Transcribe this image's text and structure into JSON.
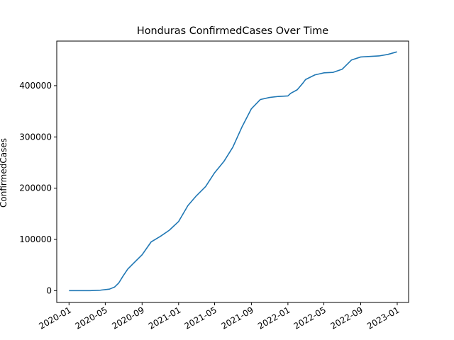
{
  "chart_data": {
    "type": "line",
    "title": "Honduras  ConfirmedCases Over Time",
    "xlabel": "",
    "ylabel": "ConfirmedCases",
    "grid": false,
    "legend": "none",
    "xlim": [
      "2019-11-21",
      "2023-02-08"
    ],
    "ylim": [
      -23000,
      487000
    ],
    "x_ticks": [
      "2020-01",
      "2020-05",
      "2020-09",
      "2021-01",
      "2021-05",
      "2021-09",
      "2022-01",
      "2022-05",
      "2022-09",
      "2023-01"
    ],
    "y_ticks": [
      0,
      100000,
      200000,
      300000,
      400000
    ],
    "y_tick_labels": [
      "0",
      "100000",
      "200000",
      "300000",
      "400000"
    ],
    "series": [
      {
        "color": "#1f77b4",
        "x": [
          "2020-01-01",
          "2020-03-10",
          "2020-04-15",
          "2020-05-15",
          "2020-06-01",
          "2020-06-15",
          "2020-07-01",
          "2020-07-15",
          "2020-08-01",
          "2020-09-01",
          "2020-10-01",
          "2020-11-01",
          "2020-12-01",
          "2021-01-01",
          "2021-02-01",
          "2021-03-01",
          "2021-04-01",
          "2021-05-01",
          "2021-06-01",
          "2021-07-01",
          "2021-08-01",
          "2021-09-01",
          "2021-10-01",
          "2021-11-01",
          "2021-12-01",
          "2022-01-01",
          "2022-01-10",
          "2022-02-01",
          "2022-02-20",
          "2022-03-01",
          "2022-04-01",
          "2022-05-01",
          "2022-06-01",
          "2022-07-01",
          "2022-08-01",
          "2022-09-01",
          "2022-10-01",
          "2022-11-01",
          "2022-12-01",
          "2022-12-31"
        ],
        "y": [
          0,
          0,
          1000,
          3000,
          7000,
          15000,
          30000,
          42000,
          52000,
          70000,
          95000,
          106000,
          118000,
          135000,
          166000,
          185000,
          203000,
          230000,
          252000,
          280000,
          320000,
          355000,
          373000,
          377000,
          379000,
          380000,
          385000,
          392000,
          405000,
          412000,
          421000,
          425000,
          426000,
          432000,
          450000,
          456000,
          457000,
          458000,
          461000,
          466000
        ]
      }
    ]
  }
}
